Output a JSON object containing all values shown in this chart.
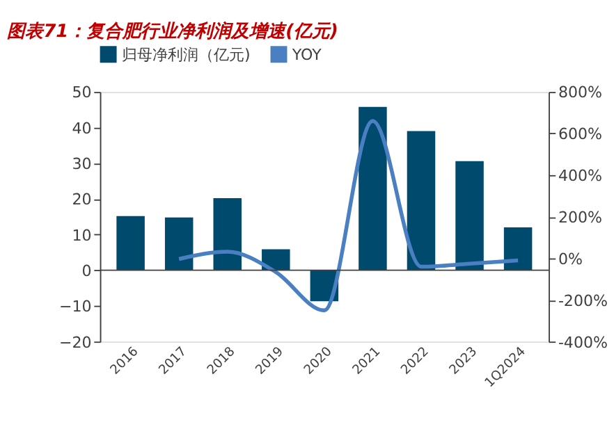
{
  "chart_data": {
    "type": "bar",
    "title": "图表71：复合肥行业净利润及增速(亿元)",
    "categories": [
      "2016",
      "2017",
      "2018",
      "2019",
      "2020",
      "2021",
      "2022",
      "2023",
      "1Q2024"
    ],
    "series": [
      {
        "name": "归母净利润（亿元)",
        "color": "#004a6e",
        "values": [
          15.2,
          14.8,
          20.2,
          5.9,
          -8.7,
          45.8,
          39.0,
          30.6,
          12.0
        ]
      },
      {
        "name": "YOY",
        "type": "line",
        "axis": "y2",
        "color": "#4a7fc1",
        "values": [
          null,
          -3,
          32,
          -66,
          -250,
          660,
          -40,
          -26,
          -10
        ]
      }
    ],
    "ylim": [
      -20,
      50
    ],
    "yticks": [
      -20,
      -10,
      0,
      10,
      20,
      30,
      40,
      50
    ],
    "y2lim": [
      -400,
      800
    ],
    "y2ticks": [
      {
        "value": -400,
        "label": "-400%"
      },
      {
        "value": -200,
        "label": "-200%"
      },
      {
        "value": 0,
        "label": "0%"
      },
      {
        "value": 200,
        "label": "200%"
      },
      {
        "value": 400,
        "label": "400%"
      },
      {
        "value": 600,
        "label": "600%"
      },
      {
        "value": 800,
        "label": "800%"
      }
    ],
    "ref_lines": [
      {
        "axis": "y",
        "value": 0,
        "color": "#404040"
      }
    ],
    "legend": "top",
    "grid": false,
    "line_style": "solid",
    "marker": "none"
  }
}
